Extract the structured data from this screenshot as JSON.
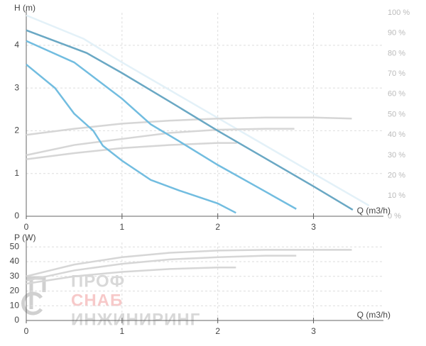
{
  "chart_data": [
    {
      "type": "line",
      "ylabel": "H (m)",
      "xlabel": "Q (m3/h)",
      "xlim": [
        0,
        3.73
      ],
      "xticks": [
        0,
        1,
        2,
        3
      ],
      "ylim": [
        0,
        4.76
      ],
      "yticks": [
        0,
        1,
        2,
        3,
        4
      ],
      "y2lim": [
        0,
        100
      ],
      "y2ticks": [
        {
          "value": 0,
          "label": "0 %"
        },
        {
          "value": 10,
          "label": "10 %"
        },
        {
          "value": 20,
          "label": "20 %"
        },
        {
          "value": 30,
          "label": "30 %"
        },
        {
          "value": 40,
          "label": "40 %"
        },
        {
          "value": 50,
          "label": "50 %"
        },
        {
          "value": 60,
          "label": "60 %"
        },
        {
          "value": 70,
          "label": "70 %"
        },
        {
          "value": 80,
          "label": "80 %"
        },
        {
          "value": 90,
          "label": "90 %"
        },
        {
          "value": 100,
          "label": "100 %"
        }
      ],
      "grid": true,
      "series": [
        {
          "color": "#e3f1f8",
          "x": [
            0,
            0.6,
            1,
            1.5,
            2,
            2.5,
            3,
            3.58
          ],
          "values": [
            4.7,
            4.15,
            3.6,
            2.95,
            2.3,
            1.65,
            1.0,
            0.25
          ]
        },
        {
          "color": "#d6d6d6",
          "axis": "y2",
          "x": [
            0,
            0.5,
            1,
            1.5,
            2,
            2.5,
            3,
            3.4
          ],
          "values": [
            40,
            43,
            45.5,
            47,
            48,
            48.5,
            48.5,
            48
          ]
        },
        {
          "color": "#d6d6d6",
          "axis": "y2",
          "x": [
            0,
            0.5,
            1,
            1.5,
            2,
            2.5,
            2.8
          ],
          "values": [
            30,
            35,
            38,
            41,
            42.5,
            43,
            43
          ]
        },
        {
          "color": "#d6d6d6",
          "axis": "y2",
          "x": [
            0,
            0.5,
            1,
            1.5,
            2,
            2.2
          ],
          "values": [
            28,
            31,
            33.5,
            35,
            36,
            36
          ]
        },
        {
          "color": "#6aa8c4",
          "x": [
            0,
            0.63,
            1,
            1.5,
            2,
            2.5,
            3,
            3.41
          ],
          "values": [
            4.35,
            3.82,
            3.35,
            2.68,
            2.0,
            1.35,
            0.7,
            0.15
          ]
        },
        {
          "color": "#72bde0",
          "x": [
            0,
            0.5,
            1,
            1.3,
            1.6,
            2,
            2.4,
            2.82
          ],
          "values": [
            4.1,
            3.6,
            2.75,
            2.15,
            1.75,
            1.2,
            0.7,
            0.17
          ]
        },
        {
          "color": "#72bde0",
          "x": [
            0,
            0.3,
            0.5,
            0.7,
            0.8,
            1,
            1.3,
            1.6,
            2,
            2.19
          ],
          "values": [
            3.55,
            3.0,
            2.4,
            2.0,
            1.65,
            1.3,
            0.85,
            0.6,
            0.3,
            0.08
          ]
        }
      ]
    },
    {
      "type": "line",
      "ylabel": "P (W)",
      "xlabel": "Q (m3/h)",
      "xlim": [
        0,
        3.73
      ],
      "xticks": [
        0,
        1,
        2,
        3
      ],
      "ylim": [
        0,
        53
      ],
      "yticks": [
        0,
        10,
        20,
        30,
        40,
        50
      ],
      "grid": true,
      "series": [
        {
          "color": "#d6d6d6",
          "x": [
            0,
            0.5,
            1,
            1.5,
            2,
            2.5,
            3,
            3.4
          ],
          "values": [
            30,
            38,
            43,
            46,
            47.5,
            48,
            48,
            48
          ]
        },
        {
          "color": "#d6d6d6",
          "x": [
            0,
            0.5,
            1,
            1.5,
            2,
            2.5,
            2.82
          ],
          "values": [
            27,
            34,
            38.5,
            41.5,
            43,
            44,
            44
          ]
        },
        {
          "color": "#d6d6d6",
          "x": [
            0,
            0.5,
            1,
            1.5,
            2,
            2.19
          ],
          "values": [
            25,
            30,
            33,
            35,
            36,
            36
          ]
        }
      ]
    }
  ],
  "watermark": {
    "line1": "ПРОФ",
    "line2": "СНАБ",
    "line3": "ИНЖИНИРИНГ"
  }
}
